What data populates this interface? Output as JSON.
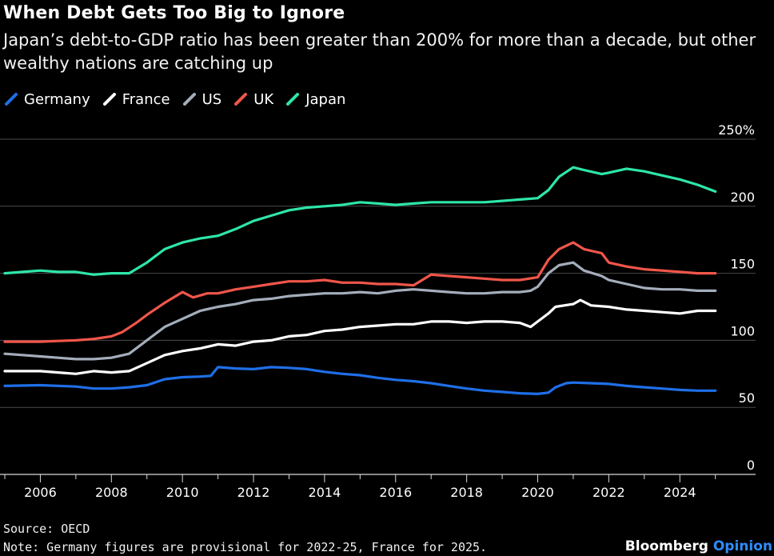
{
  "header": {
    "title": "When Debt Gets Too Big to Ignore",
    "subtitle": "Japan’s debt-to-GDP ratio has been greater than 200% for more than a decade, but other wealthy nations are catching up"
  },
  "footer": {
    "source": "Source: OECD",
    "note": "Note: Germany figures are provisional for 2022-25, France for 2025.",
    "brand_main": "Bloomberg",
    "brand_accent": "Opinion"
  },
  "chart_data": {
    "type": "line",
    "title": "When Debt Gets Too Big to Ignore",
    "xlabel": "",
    "ylabel": "",
    "xlim": [
      2005,
      2025.3
    ],
    "ylim": [
      0,
      250
    ],
    "x_ticks": [
      2006,
      2008,
      2010,
      2012,
      2014,
      2016,
      2018,
      2020,
      2022,
      2024
    ],
    "y_ticks": [
      {
        "value": 0,
        "label": "0"
      },
      {
        "value": 50,
        "label": "50"
      },
      {
        "value": 100,
        "label": "100"
      },
      {
        "value": 150,
        "label": "150"
      },
      {
        "value": 200,
        "label": "200"
      },
      {
        "value": 250,
        "label": "250%"
      }
    ],
    "grid": "horizontal",
    "legend_position": "top-left",
    "series": [
      {
        "name": "Germany",
        "color": "#1f6fe8",
        "points": [
          [
            2005,
            66
          ],
          [
            2006,
            66.5
          ],
          [
            2007,
            65.5
          ],
          [
            2007.5,
            64
          ],
          [
            2008,
            64
          ],
          [
            2008.5,
            65
          ],
          [
            2009,
            66.5
          ],
          [
            2009.5,
            71
          ],
          [
            2010,
            72.5
          ],
          [
            2010.5,
            73
          ],
          [
            2010.8,
            73.5
          ],
          [
            2011,
            80
          ],
          [
            2011.5,
            79
          ],
          [
            2012,
            78.5
          ],
          [
            2012.5,
            80
          ],
          [
            2013,
            79.5
          ],
          [
            2013.5,
            78.5
          ],
          [
            2014,
            76.5
          ],
          [
            2014.5,
            75
          ],
          [
            2015,
            74
          ],
          [
            2015.5,
            72
          ],
          [
            2016,
            70.5
          ],
          [
            2016.5,
            69.5
          ],
          [
            2017,
            68
          ],
          [
            2017.5,
            66
          ],
          [
            2018,
            64
          ],
          [
            2018.5,
            62.5
          ],
          [
            2019,
            61.5
          ],
          [
            2019.5,
            60.5
          ],
          [
            2020,
            60
          ],
          [
            2020.3,
            61
          ],
          [
            2020.5,
            65
          ],
          [
            2020.8,
            68
          ],
          [
            2021,
            68.5
          ],
          [
            2021.5,
            68
          ],
          [
            2022,
            67.5
          ],
          [
            2022.5,
            66
          ],
          [
            2023,
            65
          ],
          [
            2023.5,
            64
          ],
          [
            2024,
            63
          ],
          [
            2024.5,
            62.5
          ],
          [
            2025,
            62.5
          ]
        ]
      },
      {
        "name": "France",
        "color": "#ffffff",
        "points": [
          [
            2005,
            77
          ],
          [
            2006,
            77
          ],
          [
            2006.5,
            76
          ],
          [
            2007,
            75
          ],
          [
            2007.5,
            77
          ],
          [
            2008,
            76
          ],
          [
            2008.5,
            77
          ],
          [
            2009,
            83
          ],
          [
            2009.5,
            89
          ],
          [
            2010,
            92
          ],
          [
            2010.5,
            94
          ],
          [
            2011,
            97
          ],
          [
            2011.5,
            96
          ],
          [
            2012,
            99
          ],
          [
            2012.5,
            100
          ],
          [
            2013,
            103
          ],
          [
            2013.5,
            104
          ],
          [
            2014,
            107
          ],
          [
            2014.5,
            108
          ],
          [
            2015,
            110
          ],
          [
            2015.5,
            111
          ],
          [
            2016,
            112
          ],
          [
            2016.5,
            112
          ],
          [
            2017,
            114
          ],
          [
            2017.5,
            114
          ],
          [
            2018,
            113
          ],
          [
            2018.5,
            114
          ],
          [
            2019,
            114
          ],
          [
            2019.5,
            113
          ],
          [
            2019.8,
            110
          ],
          [
            2020,
            114
          ],
          [
            2020.3,
            120
          ],
          [
            2020.5,
            125
          ],
          [
            2021,
            127
          ],
          [
            2021.2,
            130
          ],
          [
            2021.5,
            126
          ],
          [
            2022,
            125
          ],
          [
            2022.5,
            123
          ],
          [
            2023,
            122
          ],
          [
            2023.5,
            121
          ],
          [
            2024,
            120
          ],
          [
            2024.5,
            122
          ],
          [
            2025,
            122
          ]
        ]
      },
      {
        "name": "US",
        "color": "#a4adbb",
        "points": [
          [
            2005,
            90
          ],
          [
            2005.5,
            89
          ],
          [
            2006,
            88
          ],
          [
            2006.5,
            87
          ],
          [
            2007,
            86
          ],
          [
            2007.5,
            86
          ],
          [
            2008,
            87
          ],
          [
            2008.5,
            90
          ],
          [
            2009,
            100
          ],
          [
            2009.5,
            110
          ],
          [
            2010,
            116
          ],
          [
            2010.5,
            122
          ],
          [
            2011,
            125
          ],
          [
            2011.5,
            127
          ],
          [
            2012,
            130
          ],
          [
            2012.5,
            131
          ],
          [
            2013,
            133
          ],
          [
            2013.5,
            134
          ],
          [
            2014,
            135
          ],
          [
            2014.5,
            135
          ],
          [
            2015,
            136
          ],
          [
            2015.5,
            135
          ],
          [
            2016,
            137
          ],
          [
            2016.5,
            138
          ],
          [
            2017,
            137
          ],
          [
            2017.5,
            136
          ],
          [
            2018,
            135
          ],
          [
            2018.5,
            135
          ],
          [
            2019,
            136
          ],
          [
            2019.5,
            136
          ],
          [
            2019.8,
            137
          ],
          [
            2020,
            140
          ],
          [
            2020.3,
            150
          ],
          [
            2020.6,
            156
          ],
          [
            2021,
            158
          ],
          [
            2021.3,
            152
          ],
          [
            2021.8,
            148
          ],
          [
            2022,
            145
          ],
          [
            2022.5,
            142
          ],
          [
            2023,
            139
          ],
          [
            2023.5,
            138
          ],
          [
            2024,
            138
          ],
          [
            2024.5,
            137
          ],
          [
            2025,
            137
          ]
        ]
      },
      {
        "name": "UK",
        "color": "#f0564a",
        "points": [
          [
            2005,
            99
          ],
          [
            2006,
            99
          ],
          [
            2006.5,
            99.5
          ],
          [
            2007,
            100
          ],
          [
            2007.5,
            101
          ],
          [
            2008,
            103
          ],
          [
            2008.3,
            106
          ],
          [
            2008.7,
            113
          ],
          [
            2009,
            119
          ],
          [
            2009.5,
            128
          ],
          [
            2010,
            136
          ],
          [
            2010.3,
            132
          ],
          [
            2010.7,
            135
          ],
          [
            2011,
            135
          ],
          [
            2011.5,
            138
          ],
          [
            2012,
            140
          ],
          [
            2012.5,
            142
          ],
          [
            2013,
            144
          ],
          [
            2013.5,
            144
          ],
          [
            2014,
            145
          ],
          [
            2014.5,
            143
          ],
          [
            2015,
            143
          ],
          [
            2015.5,
            142
          ],
          [
            2016,
            142
          ],
          [
            2016.5,
            141
          ],
          [
            2017,
            149
          ],
          [
            2017.5,
            148
          ],
          [
            2018,
            147
          ],
          [
            2018.5,
            146
          ],
          [
            2019,
            145
          ],
          [
            2019.5,
            145
          ],
          [
            2020,
            147
          ],
          [
            2020.3,
            160
          ],
          [
            2020.6,
            168
          ],
          [
            2021,
            173
          ],
          [
            2021.3,
            168
          ],
          [
            2021.8,
            165
          ],
          [
            2022,
            158
          ],
          [
            2022.5,
            155
          ],
          [
            2023,
            153
          ],
          [
            2023.5,
            152
          ],
          [
            2024,
            151
          ],
          [
            2024.5,
            150
          ],
          [
            2025,
            150
          ]
        ]
      },
      {
        "name": "Japan",
        "color": "#2ee6a6",
        "points": [
          [
            2005,
            150
          ],
          [
            2005.5,
            151
          ],
          [
            2006,
            152
          ],
          [
            2006.5,
            151
          ],
          [
            2007,
            151
          ],
          [
            2007.5,
            149
          ],
          [
            2008,
            150
          ],
          [
            2008.5,
            150
          ],
          [
            2009,
            158
          ],
          [
            2009.5,
            168
          ],
          [
            2010,
            173
          ],
          [
            2010.5,
            176
          ],
          [
            2011,
            178
          ],
          [
            2011.5,
            183
          ],
          [
            2012,
            189
          ],
          [
            2012.5,
            193
          ],
          [
            2013,
            197
          ],
          [
            2013.5,
            199
          ],
          [
            2014,
            200
          ],
          [
            2014.5,
            201
          ],
          [
            2015,
            203
          ],
          [
            2015.5,
            202
          ],
          [
            2016,
            201
          ],
          [
            2016.5,
            202
          ],
          [
            2017,
            203
          ],
          [
            2017.5,
            203
          ],
          [
            2018,
            203
          ],
          [
            2018.5,
            203
          ],
          [
            2019,
            204
          ],
          [
            2019.5,
            205
          ],
          [
            2020,
            206
          ],
          [
            2020.3,
            212
          ],
          [
            2020.6,
            222
          ],
          [
            2021,
            229
          ],
          [
            2021.3,
            227
          ],
          [
            2021.8,
            224
          ],
          [
            2022,
            225
          ],
          [
            2022.5,
            228
          ],
          [
            2023,
            226
          ],
          [
            2023.5,
            223
          ],
          [
            2024,
            220
          ],
          [
            2024.5,
            216
          ],
          [
            2025,
            211
          ]
        ]
      }
    ]
  }
}
